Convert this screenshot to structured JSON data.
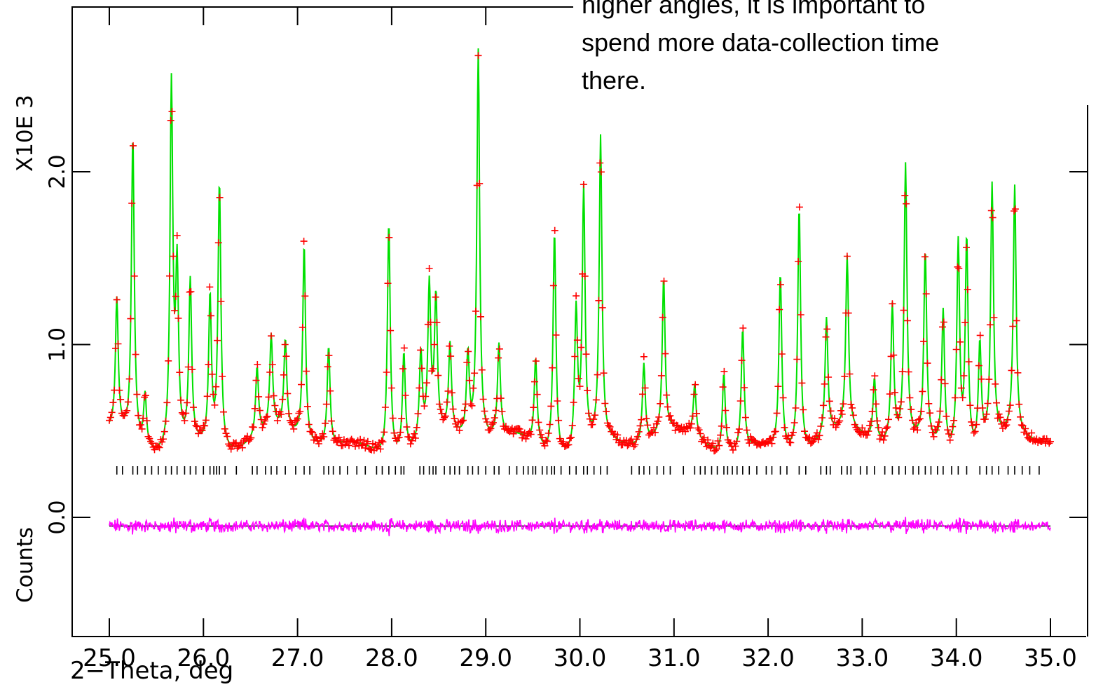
{
  "chart_data": {
    "type": "scatter",
    "x_label": "2−Theta, deg",
    "y_label_parts": [
      "Counts",
      "X10E  3"
    ],
    "x_tick_labels": [
      "25.0",
      "26.0",
      "27.0",
      "28.0",
      "29.0",
      "30.0",
      "31.0",
      "32.0",
      "33.0",
      "34.0",
      "35.0"
    ],
    "y_tick_labels": [
      "0.0",
      "1.0",
      "2.0"
    ],
    "x_ticks": [
      25,
      26,
      27,
      28,
      29,
      30,
      31,
      32,
      33,
      34,
      35
    ],
    "y_ticks": [
      0,
      1,
      2
    ],
    "xlim": [
      24.6,
      35.5
    ],
    "ylim": [
      -0.6,
      2.9
    ],
    "x_range": [
      25.0,
      35.0
    ],
    "background_level": 0.42,
    "difference_offset": -0.05,
    "peaks": [
      {
        "x": 25.08,
        "y": 1.18
      },
      {
        "x": 25.25,
        "y": 2.18
      },
      {
        "x": 25.38,
        "y": 0.72
      },
      {
        "x": 25.66,
        "y": 2.52
      },
      {
        "x": 25.72,
        "y": 1.42
      },
      {
        "x": 25.86,
        "y": 1.36
      },
      {
        "x": 26.07,
        "y": 1.28
      },
      {
        "x": 26.17,
        "y": 1.96
      },
      {
        "x": 26.57,
        "y": 0.82
      },
      {
        "x": 26.72,
        "y": 0.96
      },
      {
        "x": 26.87,
        "y": 0.94
      },
      {
        "x": 27.07,
        "y": 1.56
      },
      {
        "x": 27.33,
        "y": 1.0
      },
      {
        "x": 27.97,
        "y": 1.78
      },
      {
        "x": 28.13,
        "y": 1.0
      },
      {
        "x": 28.31,
        "y": 0.93
      },
      {
        "x": 28.4,
        "y": 1.28
      },
      {
        "x": 28.47,
        "y": 1.2
      },
      {
        "x": 28.62,
        "y": 0.93
      },
      {
        "x": 28.81,
        "y": 0.9
      },
      {
        "x": 28.92,
        "y": 2.68
      },
      {
        "x": 29.14,
        "y": 0.95
      },
      {
        "x": 29.53,
        "y": 0.92
      },
      {
        "x": 29.73,
        "y": 1.72
      },
      {
        "x": 29.96,
        "y": 1.22
      },
      {
        "x": 30.04,
        "y": 1.9
      },
      {
        "x": 30.22,
        "y": 2.18
      },
      {
        "x": 30.68,
        "y": 0.88
      },
      {
        "x": 30.89,
        "y": 1.32
      },
      {
        "x": 31.22,
        "y": 0.72
      },
      {
        "x": 31.53,
        "y": 0.88
      },
      {
        "x": 31.73,
        "y": 1.12
      },
      {
        "x": 32.13,
        "y": 1.44
      },
      {
        "x": 32.33,
        "y": 1.84
      },
      {
        "x": 32.62,
        "y": 1.1
      },
      {
        "x": 32.84,
        "y": 1.42
      },
      {
        "x": 33.13,
        "y": 0.78
      },
      {
        "x": 33.32,
        "y": 1.22
      },
      {
        "x": 33.46,
        "y": 2.02
      },
      {
        "x": 33.67,
        "y": 1.52
      },
      {
        "x": 33.86,
        "y": 1.22
      },
      {
        "x": 34.02,
        "y": 1.64
      },
      {
        "x": 34.11,
        "y": 1.66
      },
      {
        "x": 34.25,
        "y": 1.02
      },
      {
        "x": 34.38,
        "y": 1.9
      },
      {
        "x": 34.62,
        "y": 1.86
      }
    ],
    "reflection_ticks": [
      25.08,
      25.14,
      25.25,
      25.3,
      25.38,
      25.45,
      25.52,
      25.6,
      25.66,
      25.72,
      25.8,
      25.86,
      25.92,
      26.0,
      26.07,
      26.11,
      26.14,
      26.17,
      26.23,
      26.35,
      26.52,
      26.57,
      26.66,
      26.72,
      26.78,
      26.87,
      26.98,
      27.07,
      27.13,
      27.28,
      27.33,
      27.38,
      27.45,
      27.53,
      27.63,
      27.72,
      27.84,
      27.9,
      27.97,
      28.04,
      28.1,
      28.13,
      28.3,
      28.34,
      28.4,
      28.44,
      28.47,
      28.56,
      28.62,
      28.67,
      28.72,
      28.81,
      28.86,
      28.92,
      29.0,
      29.09,
      29.14,
      29.25,
      29.33,
      29.4,
      29.45,
      29.5,
      29.53,
      29.6,
      29.65,
      29.7,
      29.73,
      29.8,
      29.89,
      29.96,
      30.04,
      30.08,
      30.15,
      30.22,
      30.29,
      30.55,
      30.63,
      30.68,
      30.74,
      30.82,
      30.89,
      30.96,
      31.1,
      31.22,
      31.28,
      31.33,
      31.4,
      31.46,
      31.53,
      31.57,
      31.62,
      31.67,
      31.73,
      31.8,
      31.88,
      31.98,
      32.04,
      32.13,
      32.2,
      32.33,
      32.4,
      32.56,
      32.62,
      32.66,
      32.78,
      32.84,
      32.88,
      32.98,
      33.05,
      33.13,
      33.24,
      33.32,
      33.39,
      33.46,
      33.54,
      33.6,
      33.67,
      33.73,
      33.8,
      33.86,
      33.95,
      34.02,
      34.11,
      34.25,
      34.32,
      34.38,
      34.45,
      34.55,
      34.62,
      34.7,
      34.78,
      34.88
    ]
  },
  "note": {
    "lines": [
      "higher angles, it is important to",
      "spend more data-collection time",
      "there."
    ]
  },
  "colors": {
    "observed": "#ff0000",
    "calculated": "#00e000",
    "difference": "#ff00ff",
    "reflections": "#000000",
    "axes": "#000000"
  }
}
